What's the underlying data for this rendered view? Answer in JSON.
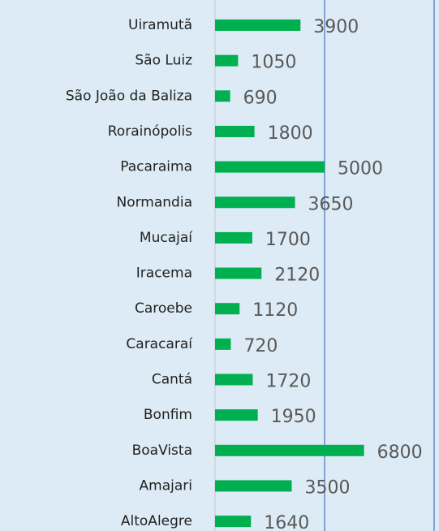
{
  "chart_data": {
    "type": "bar",
    "orientation": "horizontal",
    "categories": [
      "Uiramutã",
      "São Luiz",
      "São João da Baliza",
      "Rorainópolis",
      "Pacaraima",
      "Normandia",
      "Mucajaí",
      "Iracema",
      "Caroebe",
      "Caracaraí",
      "Cantá",
      "Bonfim",
      "BoaVista",
      "Amajari",
      "AltoAlegre"
    ],
    "values": [
      3900,
      1050,
      690,
      1800,
      5000,
      3650,
      1700,
      2120,
      1120,
      720,
      1720,
      1950,
      6800,
      3500,
      1640
    ],
    "color": "#00b050",
    "xlim": [
      0,
      10000
    ],
    "xticks": [
      0,
      5000,
      10000
    ],
    "grid": true
  }
}
